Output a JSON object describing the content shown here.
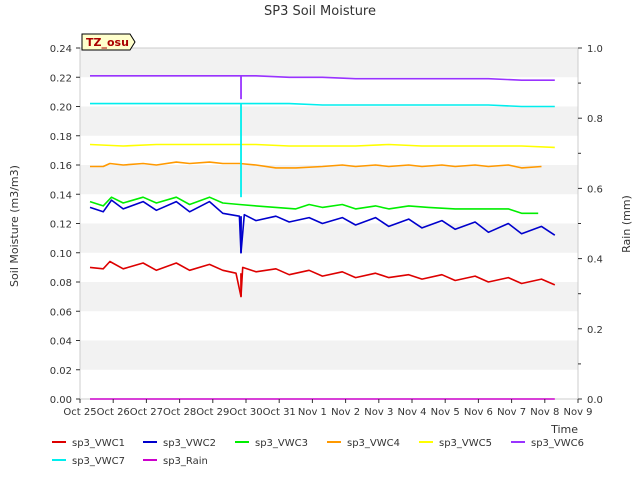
{
  "chart_data": {
    "type": "line",
    "title": "SP3 Soil Moisture",
    "xlabel": "Time",
    "ylabel": "Soil Moisture (m3/m3)",
    "y2label": "Rain (mm)",
    "station_label": "TZ_osu",
    "x_ticks": [
      "Oct 25",
      "Oct 26",
      "Oct 27",
      "Oct 28",
      "Oct 29",
      "Oct 30",
      "Oct 31",
      "Nov 1",
      "Nov 2",
      "Nov 3",
      "Nov 4",
      "Nov 5",
      "Nov 6",
      "Nov 7",
      "Nov 8",
      "Nov 9"
    ],
    "y_ticks": [
      "0.00",
      "0.02",
      "0.04",
      "0.06",
      "0.08",
      "0.10",
      "0.12",
      "0.14",
      "0.16",
      "0.18",
      "0.20",
      "0.22",
      "0.24"
    ],
    "y2_ticks": [
      "0.0",
      "0.2",
      "0.4",
      "0.6",
      "0.8",
      "1.0"
    ],
    "ylim": [
      0,
      0.24
    ],
    "y2lim": [
      0,
      1.0
    ],
    "xlim_days": [
      0,
      15
    ],
    "grid": "horizontal bands",
    "legend_position": "bottom",
    "series": [
      {
        "name": "sp3_VWC1",
        "color": "#dd0000",
        "points": [
          [
            0.3,
            0.09
          ],
          [
            0.7,
            0.089
          ],
          [
            0.9,
            0.094
          ],
          [
            1.3,
            0.089
          ],
          [
            1.9,
            0.093
          ],
          [
            2.3,
            0.088
          ],
          [
            2.9,
            0.093
          ],
          [
            3.3,
            0.088
          ],
          [
            3.9,
            0.092
          ],
          [
            4.3,
            0.088
          ],
          [
            4.7,
            0.086
          ],
          [
            4.85,
            0.07
          ],
          [
            4.9,
            0.09
          ],
          [
            5.3,
            0.087
          ],
          [
            5.9,
            0.089
          ],
          [
            6.3,
            0.085
          ],
          [
            6.9,
            0.088
          ],
          [
            7.3,
            0.084
          ],
          [
            7.9,
            0.087
          ],
          [
            8.3,
            0.083
          ],
          [
            8.9,
            0.086
          ],
          [
            9.3,
            0.083
          ],
          [
            9.9,
            0.085
          ],
          [
            10.3,
            0.082
          ],
          [
            10.9,
            0.085
          ],
          [
            11.3,
            0.081
          ],
          [
            11.9,
            0.084
          ],
          [
            12.3,
            0.08
          ],
          [
            12.9,
            0.083
          ],
          [
            13.3,
            0.079
          ],
          [
            13.9,
            0.082
          ],
          [
            14.3,
            0.078
          ]
        ]
      },
      {
        "name": "sp3_VWC2",
        "color": "#0000cc",
        "points": [
          [
            0.3,
            0.131
          ],
          [
            0.7,
            0.128
          ],
          [
            0.95,
            0.136
          ],
          [
            1.3,
            0.13
          ],
          [
            1.9,
            0.135
          ],
          [
            2.3,
            0.129
          ],
          [
            2.9,
            0.135
          ],
          [
            3.3,
            0.128
          ],
          [
            3.9,
            0.135
          ],
          [
            4.3,
            0.127
          ],
          [
            4.8,
            0.125
          ],
          [
            4.85,
            0.1
          ],
          [
            4.95,
            0.126
          ],
          [
            5.3,
            0.122
          ],
          [
            5.9,
            0.125
          ],
          [
            6.3,
            0.121
          ],
          [
            6.9,
            0.124
          ],
          [
            7.3,
            0.12
          ],
          [
            7.9,
            0.124
          ],
          [
            8.3,
            0.119
          ],
          [
            8.9,
            0.124
          ],
          [
            9.3,
            0.118
          ],
          [
            9.9,
            0.123
          ],
          [
            10.3,
            0.117
          ],
          [
            10.9,
            0.122
          ],
          [
            11.3,
            0.116
          ],
          [
            11.9,
            0.121
          ],
          [
            12.3,
            0.114
          ],
          [
            12.9,
            0.12
          ],
          [
            13.3,
            0.113
          ],
          [
            13.9,
            0.118
          ],
          [
            14.3,
            0.112
          ]
        ]
      },
      {
        "name": "sp3_VWC3",
        "color": "#00ee00",
        "points": [
          [
            0.3,
            0.135
          ],
          [
            0.7,
            0.132
          ],
          [
            0.95,
            0.138
          ],
          [
            1.3,
            0.134
          ],
          [
            1.9,
            0.138
          ],
          [
            2.3,
            0.134
          ],
          [
            2.9,
            0.138
          ],
          [
            3.3,
            0.133
          ],
          [
            3.9,
            0.138
          ],
          [
            4.3,
            0.134
          ],
          [
            4.8,
            0.133
          ],
          [
            5.3,
            0.132
          ],
          [
            5.9,
            0.131
          ],
          [
            6.5,
            0.13
          ],
          [
            6.9,
            0.133
          ],
          [
            7.3,
            0.131
          ],
          [
            7.9,
            0.133
          ],
          [
            8.3,
            0.13
          ],
          [
            8.9,
            0.132
          ],
          [
            9.3,
            0.13
          ],
          [
            9.9,
            0.132
          ],
          [
            10.5,
            0.131
          ],
          [
            11.3,
            0.13
          ],
          [
            12.3,
            0.13
          ],
          [
            12.9,
            0.13
          ],
          [
            13.3,
            0.127
          ],
          [
            13.8,
            0.127
          ]
        ]
      },
      {
        "name": "sp3_VWC4",
        "color": "#ff9900",
        "points": [
          [
            0.3,
            0.159
          ],
          [
            0.7,
            0.159
          ],
          [
            0.9,
            0.161
          ],
          [
            1.3,
            0.16
          ],
          [
            1.9,
            0.161
          ],
          [
            2.3,
            0.16
          ],
          [
            2.9,
            0.162
          ],
          [
            3.3,
            0.161
          ],
          [
            3.9,
            0.162
          ],
          [
            4.3,
            0.161
          ],
          [
            4.8,
            0.161
          ],
          [
            5.3,
            0.16
          ],
          [
            5.9,
            0.158
          ],
          [
            6.5,
            0.158
          ],
          [
            7.3,
            0.159
          ],
          [
            7.9,
            0.16
          ],
          [
            8.3,
            0.159
          ],
          [
            8.9,
            0.16
          ],
          [
            9.3,
            0.159
          ],
          [
            9.9,
            0.16
          ],
          [
            10.3,
            0.159
          ],
          [
            10.9,
            0.16
          ],
          [
            11.3,
            0.159
          ],
          [
            11.9,
            0.16
          ],
          [
            12.3,
            0.159
          ],
          [
            12.9,
            0.16
          ],
          [
            13.3,
            0.158
          ],
          [
            13.9,
            0.159
          ]
        ]
      },
      {
        "name": "sp3_VWC5",
        "color": "#ffff00",
        "points": [
          [
            0.3,
            0.174
          ],
          [
            1.3,
            0.173
          ],
          [
            2.3,
            0.174
          ],
          [
            3.3,
            0.174
          ],
          [
            4.3,
            0.174
          ],
          [
            4.8,
            0.174
          ],
          [
            5.3,
            0.174
          ],
          [
            6.3,
            0.173
          ],
          [
            7.3,
            0.173
          ],
          [
            8.3,
            0.173
          ],
          [
            9.3,
            0.174
          ],
          [
            10.3,
            0.173
          ],
          [
            11.3,
            0.173
          ],
          [
            12.3,
            0.173
          ],
          [
            13.3,
            0.173
          ],
          [
            14.3,
            0.172
          ]
        ]
      },
      {
        "name": "sp3_VWC6",
        "color": "#9933ff",
        "points": [
          [
            0.3,
            0.221
          ],
          [
            2.3,
            0.221
          ],
          [
            4.3,
            0.221
          ],
          [
            4.8,
            0.221
          ],
          [
            5.3,
            0.221
          ],
          [
            6.3,
            0.22
          ],
          [
            7.3,
            0.22
          ],
          [
            8.3,
            0.219
          ],
          [
            9.3,
            0.219
          ],
          [
            10.3,
            0.219
          ],
          [
            11.3,
            0.219
          ],
          [
            12.3,
            0.219
          ],
          [
            13.3,
            0.218
          ],
          [
            14.3,
            0.218
          ]
        ]
      },
      {
        "name": "sp3_VWC7",
        "color": "#00eeee",
        "points": [
          [
            0.3,
            0.202
          ],
          [
            2.3,
            0.202
          ],
          [
            4.3,
            0.202
          ],
          [
            4.8,
            0.202
          ],
          [
            5.3,
            0.202
          ],
          [
            6.3,
            0.202
          ],
          [
            7.3,
            0.201
          ],
          [
            8.3,
            0.201
          ],
          [
            9.3,
            0.201
          ],
          [
            10.3,
            0.201
          ],
          [
            11.3,
            0.201
          ],
          [
            12.3,
            0.201
          ],
          [
            13.3,
            0.2
          ],
          [
            14.3,
            0.2
          ]
        ]
      },
      {
        "name": "sp3_Rain",
        "color": "#cc00cc",
        "axis": "right",
        "points": [
          [
            0.3,
            0.0
          ],
          [
            14.3,
            0.0
          ]
        ]
      }
    ],
    "spikes": [
      {
        "series": "sp3_VWC6",
        "x": 4.85,
        "from": 0.221,
        "to": 0.205
      },
      {
        "series": "sp3_VWC7",
        "x": 4.85,
        "from": 0.202,
        "to": 0.138
      },
      {
        "series": "sp3_VWC2",
        "x": 4.85,
        "from": 0.125,
        "to": 0.1
      },
      {
        "series": "sp3_VWC1",
        "x": 4.85,
        "from": 0.086,
        "to": 0.07
      }
    ]
  }
}
